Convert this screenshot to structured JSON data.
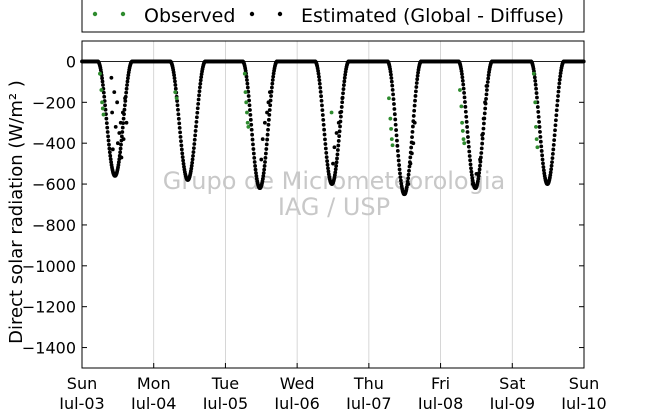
{
  "chart_data": {
    "type": "scatter",
    "ylabel": "Direct solar radiation (W/m² )",
    "xlabel": "",
    "watermark": [
      "Grupo de Micrometeorologia",
      "IAG / USP"
    ],
    "ylim": [
      -1500,
      100
    ],
    "xlim": [
      0,
      7
    ],
    "yticks": [
      0,
      -200,
      -400,
      -600,
      -800,
      -1000,
      -1200,
      -1400
    ],
    "xticks": [
      {
        "x": 0,
        "top": "Sun",
        "bottom": "Jul-03"
      },
      {
        "x": 1,
        "top": "Mon",
        "bottom": "Jul-04"
      },
      {
        "x": 2,
        "top": "Tue",
        "bottom": "Jul-05"
      },
      {
        "x": 3,
        "top": "Wed",
        "bottom": "Jul-06"
      },
      {
        "x": 4,
        "top": "Thu",
        "bottom": "Jul-07"
      },
      {
        "x": 5,
        "top": "Fri",
        "bottom": "Jul-08"
      },
      {
        "x": 6,
        "top": "Sat",
        "bottom": "Jul-09"
      },
      {
        "x": 7,
        "top": "Sun",
        "bottom": "Jul-10"
      }
    ],
    "grid": "vertical",
    "legend_position": "top",
    "colors": {
      "observed": "#2e8b2e",
      "estimated": "#000000"
    },
    "series": [
      {
        "name": "Observed",
        "color": "#2e8b2e",
        "points": [
          [
            0.25,
            -60
          ],
          [
            0.27,
            -140
          ],
          [
            0.28,
            -200
          ],
          [
            0.29,
            -230
          ],
          [
            0.3,
            -260
          ],
          [
            1.3,
            -150
          ],
          [
            1.32,
            -180
          ],
          [
            2.27,
            -60
          ],
          [
            2.28,
            -150
          ],
          [
            2.29,
            -200
          ],
          [
            2.3,
            -250
          ],
          [
            2.31,
            -300
          ],
          [
            2.32,
            -320
          ],
          [
            3.48,
            -250
          ],
          [
            4.28,
            -180
          ],
          [
            4.3,
            -280
          ],
          [
            4.31,
            -330
          ],
          [
            4.32,
            -380
          ],
          [
            4.33,
            -410
          ],
          [
            5.27,
            -140
          ],
          [
            5.29,
            -220
          ],
          [
            5.3,
            -300
          ],
          [
            5.31,
            -340
          ],
          [
            5.32,
            -380
          ],
          [
            5.33,
            -400
          ],
          [
            6.3,
            -60
          ],
          [
            6.32,
            -200
          ],
          [
            6.33,
            -320
          ],
          [
            6.34,
            -380
          ],
          [
            6.35,
            -420
          ]
        ]
      },
      {
        "name": "Estimated (Global - Diffuse)",
        "color": "#000000",
        "days": [
          {
            "start": 0.22,
            "end": 0.7,
            "min": -560,
            "noise": [
              [
                0.41,
                -80
              ],
              [
                0.42,
                -250
              ],
              [
                0.43,
                -430
              ],
              [
                0.45,
                -150
              ],
              [
                0.47,
                -320
              ],
              [
                0.49,
                -200
              ],
              [
                0.5,
                -400
              ],
              [
                0.52,
                -350
              ],
              [
                0.54,
                -300
              ],
              [
                0.55,
                -470
              ],
              [
                0.57,
                -250
              ],
              [
                0.58,
                -380
              ],
              [
                0.6,
                -180
              ],
              [
                0.62,
                -300
              ]
            ]
          },
          {
            "start": 1.23,
            "end": 1.72,
            "min": -580,
            "noise": []
          },
          {
            "start": 2.24,
            "end": 2.72,
            "min": -620,
            "noise": [
              [
                2.5,
                -480
              ],
              [
                2.52,
                -380
              ],
              [
                2.55,
                -300
              ],
              [
                2.58,
                -250
              ],
              [
                2.6,
                -200
              ],
              [
                2.62,
                -150
              ]
            ]
          },
          {
            "start": 3.25,
            "end": 3.72,
            "min": -600,
            "noise": [
              [
                3.5,
                -500
              ],
              [
                3.52,
                -420
              ],
              [
                3.55,
                -350
              ],
              [
                3.58,
                -300
              ],
              [
                3.6,
                -250
              ],
              [
                3.63,
                -180
              ]
            ]
          },
          {
            "start": 4.26,
            "end": 4.73,
            "min": -650,
            "noise": [
              [
                4.55,
                -600
              ],
              [
                4.58,
                -500
              ],
              [
                4.6,
                -450
              ],
              [
                4.62,
                -400
              ],
              [
                4.64,
                -300
              ]
            ]
          },
          {
            "start": 5.25,
            "end": 5.72,
            "min": -620,
            "noise": [
              [
                5.45,
                -600
              ],
              [
                5.5,
                -550
              ],
              [
                5.55,
                -480
              ],
              [
                5.58,
                -360
              ],
              [
                5.6,
                -280
              ],
              [
                5.62,
                -200
              ],
              [
                5.64,
                -120
              ]
            ]
          },
          {
            "start": 6.26,
            "end": 6.72,
            "min": -600,
            "noise": []
          }
        ]
      }
    ]
  }
}
